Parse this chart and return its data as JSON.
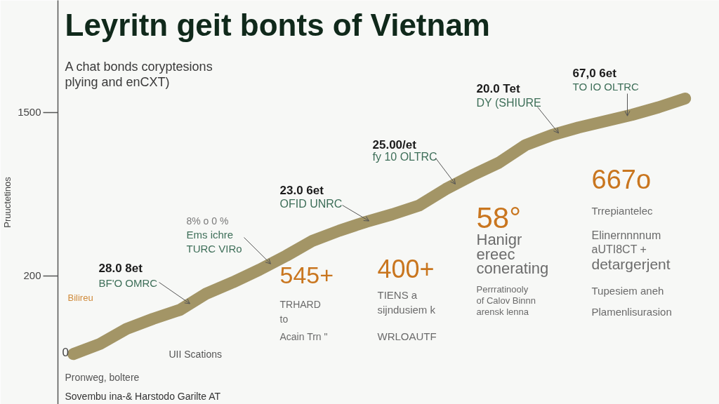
{
  "chart_data": {
    "type": "line",
    "title": "Leyritn geit bonts of Vietnam",
    "subtitle": "A chat bonds coryptesions\nplying and enCXT)",
    "ylabel": "Pruuctetinos",
    "categories": [
      null,
      null,
      null,
      null,
      null,
      null,
      null,
      null,
      null,
      null,
      null,
      null,
      null,
      null,
      null,
      null,
      null,
      null,
      null,
      null,
      null,
      null,
      null,
      null
    ],
    "series": [
      {
        "color": "#a39566",
        "values": [
          -420,
          -340,
          -220,
          -140,
          -70,
          60,
          150,
          250,
          360,
          480,
          560,
          630,
          690,
          760,
          890,
          1000,
          1100,
          1240,
          1320,
          1380,
          1430,
          1480,
          1540,
          1610
        ]
      }
    ],
    "ylim": [
      -820,
      2390
    ],
    "yticks": [
      200,
      1500
    ],
    "tick_labels": "y",
    "annotations": [
      "Bilireu",
      "28.0 8et\nBF'O OMRC",
      "8% o 0 %\nEms ichre\nTURC VIRo",
      "23.0 6et\nOFID UNRC",
      "25.00/et\nfy 10 OLTRC",
      "20.0 Tet\nDY (SHIURE",
      "67,0 6et\nTO IO OLTRC",
      "545+\nTRHARD\nto\nAcain Trn \"",
      "400+\nTIENS a\nsijndusiem k\nWRLOAUTF",
      "58°\nHanigr\nereec\nconerating\nPerrratinooly\nof Calov Binnn\narensk lenna",
      "667o\nTrrepiantelec\nElinernnnnum\naUTI8CT +\ndetargerjent\nTupesiem aneh\nPlamenlisurasion",
      "0",
      "UII Scations",
      "Pronweg, boltere",
      "Sovembu ina-& Harstodo Garilte AT"
    ]
  }
}
